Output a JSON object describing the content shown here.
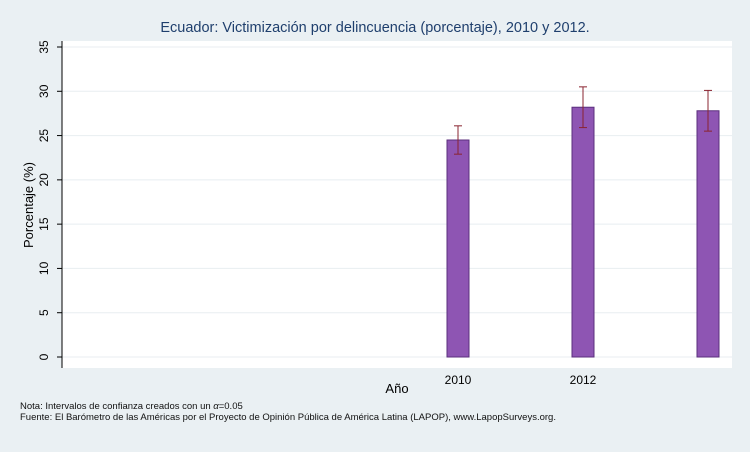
{
  "chart_data": {
    "type": "bar",
    "title": "Ecuador: Victimización por delincuencia (porcentaje), 2010 y 2012.",
    "xlabel": "Año",
    "ylabel": "Porcentaje (%)",
    "ylim": [
      0,
      35
    ],
    "yticks": [
      "0",
      "5",
      "10",
      "15",
      "20",
      "25",
      "30",
      "35"
    ],
    "categories": [
      "2010",
      "2012",
      ""
    ],
    "values": [
      24.5,
      28.2,
      27.8
    ],
    "ci_low": [
      22.9,
      25.9,
      25.5
    ],
    "ci_high": [
      26.1,
      30.5,
      30.1
    ],
    "grid": true,
    "colors": {
      "bar_fill": "#8e55b3",
      "bar_stroke": "#5b2f7d",
      "error_bar": "#8a2430",
      "plot_background": "#ffffff",
      "page_background": "#eaf0f3",
      "gridline": "#e8eef1"
    }
  },
  "footer": {
    "note_prefix": "Nota: Intervalos de confianza creados con un ",
    "alpha_symbol": "α",
    "note_suffix": "=0.05",
    "source": "Fuente: El Barómetro de las Américas por el Proyecto de Opinión Pública de América Latina (LAPOP), www.LapopSurveys.org."
  }
}
